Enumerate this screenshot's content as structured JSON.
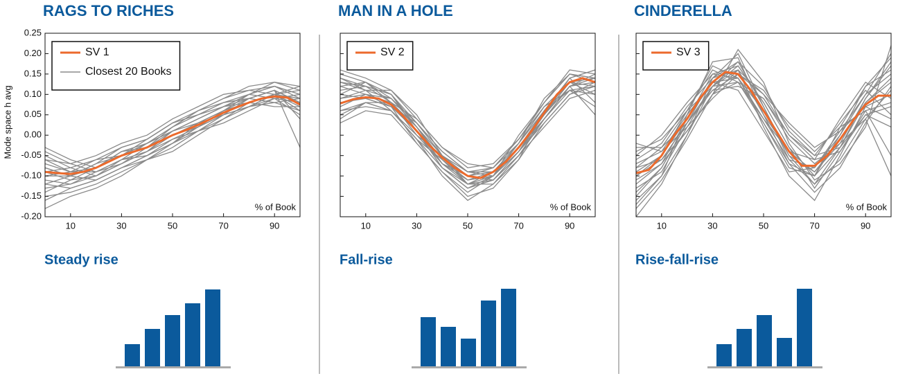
{
  "chart_data": [
    {
      "type": "line",
      "title": "RAGS TO RICHES",
      "xlabel": "% of Book",
      "ylabel": "Mode space h avg",
      "xlim": [
        0,
        100
      ],
      "xticks": [
        10,
        30,
        50,
        70,
        90
      ],
      "ylim": [
        -0.2,
        0.25
      ],
      "yticks": [
        {
          "value": -0.2,
          "label": "-0.20"
        },
        -0.15,
        {
          "value": -0.1,
          "label": "-0.10"
        },
        -0.05,
        {
          "value": 0,
          "label": "0.00"
        },
        0.05,
        {
          "value": 0.1,
          "label": "0.10"
        },
        0.15,
        {
          "value": 0.2,
          "label": "0.20"
        },
        0.25
      ],
      "ytick_labels": true,
      "legend": "upper left",
      "x": [
        0,
        5,
        10,
        15,
        20,
        25,
        30,
        35,
        40,
        45,
        50,
        55,
        60,
        65,
        70,
        75,
        80,
        85,
        90,
        95,
        100
      ],
      "series": [
        {
          "name": "SV 1",
          "color": "#ec6a2c",
          "values": [
            -0.09,
            -0.093,
            -0.095,
            -0.09,
            -0.08,
            -0.065,
            -0.05,
            -0.04,
            -0.03,
            -0.015,
            0,
            0.012,
            0.025,
            0.04,
            0.055,
            0.068,
            0.08,
            0.09,
            0.095,
            0.092,
            0.075
          ]
        }
      ],
      "books": {
        "name": "Closest 20 Books",
        "color": "#8a8a8a",
        "x": [
          0,
          10,
          20,
          30,
          40,
          50,
          60,
          70,
          80,
          90,
          100
        ],
        "lines": [
          [
            -0.05,
            -0.08,
            -0.1,
            -0.06,
            -0.04,
            0.01,
            0.04,
            0.07,
            0.09,
            0.11,
            0.08
          ],
          [
            -0.12,
            -0.13,
            -0.11,
            -0.08,
            -0.05,
            -0.02,
            0.02,
            0.06,
            0.1,
            0.12,
            0.1
          ],
          [
            -0.08,
            -0.1,
            -0.07,
            -0.03,
            -0.01,
            0.03,
            0.05,
            0.08,
            0.1,
            0.09,
            0.05
          ],
          [
            -0.15,
            -0.14,
            -0.12,
            -0.09,
            -0.06,
            -0.03,
            0.01,
            0.04,
            0.07,
            0.08,
            0.06
          ],
          [
            -0.1,
            -0.09,
            -0.06,
            -0.05,
            -0.02,
            0.02,
            0.06,
            0.09,
            0.12,
            0.13,
            0.11
          ],
          [
            -0.03,
            -0.06,
            -0.08,
            -0.05,
            -0.03,
            0,
            0.03,
            0.05,
            0.07,
            0.1,
            0.12
          ],
          [
            -0.18,
            -0.15,
            -0.13,
            -0.1,
            -0.06,
            -0.04,
            0,
            0.04,
            0.08,
            0.1,
            0.09
          ],
          [
            -0.09,
            -0.11,
            -0.1,
            -0.07,
            -0.04,
            -0.01,
            0.01,
            0.05,
            0.09,
            0.11,
            0.04
          ],
          [
            -0.06,
            -0.07,
            -0.05,
            -0.02,
            0,
            0.04,
            0.07,
            0.1,
            0.11,
            0.12,
            0.1
          ],
          [
            -0.11,
            -0.12,
            -0.09,
            -0.06,
            -0.05,
            -0.02,
            0.03,
            0.06,
            0.08,
            0.07,
            0.07
          ],
          [
            -0.07,
            -0.09,
            -0.08,
            -0.04,
            -0.02,
            0.01,
            0.04,
            0.07,
            0.1,
            0.13,
            0.12
          ],
          [
            -0.13,
            -0.12,
            -0.1,
            -0.07,
            -0.04,
            0,
            0.02,
            0.05,
            0.07,
            0.09,
            0.08
          ],
          [
            -0.04,
            -0.07,
            -0.09,
            -0.07,
            -0.03,
            0.02,
            0.05,
            0.08,
            0.09,
            0.08,
            0.09
          ],
          [
            -0.1,
            -0.1,
            -0.08,
            -0.05,
            -0.01,
            0.03,
            0.06,
            0.09,
            0.11,
            0.1,
            0.06
          ],
          [
            -0.08,
            -0.1,
            -0.11,
            -0.08,
            -0.06,
            -0.02,
            0.01,
            0.03,
            0.06,
            0.09,
            0.1
          ],
          [
            -0.14,
            -0.11,
            -0.08,
            -0.04,
            -0.03,
            0.01,
            0.03,
            0.06,
            0.09,
            0.11,
            0.08
          ],
          [
            -0.06,
            -0.09,
            -0.09,
            -0.06,
            -0.02,
            0.02,
            0.06,
            0.08,
            0.09,
            0.11,
            -0.03
          ],
          [
            -0.12,
            -0.1,
            -0.07,
            -0.05,
            -0.02,
            0.01,
            0.04,
            0.07,
            0.1,
            0.12,
            0.09
          ],
          [
            -0.09,
            -0.08,
            -0.06,
            -0.03,
            -0.01,
            0.03,
            0.05,
            0.07,
            0.08,
            0.1,
            0.11
          ],
          [
            -0.16,
            -0.13,
            -0.11,
            -0.08,
            -0.05,
            -0.01,
            0.02,
            0.05,
            0.07,
            0.1,
            0.07
          ]
        ]
      }
    },
    {
      "type": "line",
      "title": "MAN IN A HOLE",
      "xlabel": "% of Book",
      "xlim": [
        0,
        100
      ],
      "xticks": [
        10,
        30,
        50,
        70,
        90
      ],
      "ylim": [
        -0.2,
        0.25
      ],
      "yticks": [
        -0.2,
        -0.15,
        -0.1,
        -0.05,
        0,
        0.05,
        0.1,
        0.15,
        0.2,
        0.25
      ],
      "ytick_labels": false,
      "legend": "upper left",
      "x": [
        0,
        5,
        10,
        15,
        20,
        25,
        30,
        35,
        40,
        45,
        50,
        55,
        60,
        65,
        70,
        75,
        80,
        85,
        90,
        95,
        100
      ],
      "series": [
        {
          "name": "SV 2",
          "color": "#ec6a2c",
          "values": [
            0.078,
            0.088,
            0.093,
            0.09,
            0.075,
            0.045,
            0.01,
            -0.025,
            -0.055,
            -0.08,
            -0.1,
            -0.105,
            -0.09,
            -0.065,
            -0.03,
            0.01,
            0.055,
            0.1,
            0.13,
            0.14,
            0.13
          ]
        }
      ],
      "books": {
        "color": "#8a8a8a",
        "x": [
          0,
          10,
          20,
          30,
          40,
          50,
          60,
          70,
          80,
          90,
          100
        ],
        "lines": [
          [
            0.14,
            0.12,
            0.1,
            0.03,
            -0.04,
            -0.09,
            -0.08,
            -0.01,
            0.08,
            0.15,
            0.14
          ],
          [
            0.05,
            0.08,
            0.06,
            -0.01,
            -0.08,
            -0.13,
            -0.11,
            -0.05,
            0.04,
            0.12,
            0.15
          ],
          [
            0.12,
            0.13,
            0.09,
            0.02,
            -0.06,
            -0.11,
            -0.1,
            -0.04,
            0.06,
            0.14,
            0.16
          ],
          [
            0.09,
            0.1,
            0.08,
            0.04,
            -0.03,
            -0.08,
            -0.07,
            -0.01,
            0.07,
            0.11,
            0.1
          ],
          [
            0.16,
            0.14,
            0.11,
            0.05,
            -0.05,
            -0.12,
            -0.12,
            -0.06,
            0.03,
            0.1,
            0.13
          ],
          [
            0.03,
            0.06,
            0.05,
            -0.02,
            -0.09,
            -0.14,
            -0.1,
            -0.02,
            0.09,
            0.15,
            0.14
          ],
          [
            0.1,
            0.09,
            0.07,
            0.01,
            -0.07,
            -0.1,
            -0.09,
            -0.03,
            0.05,
            0.13,
            0.12
          ],
          [
            0.13,
            0.11,
            0.06,
            -0.01,
            -0.1,
            -0.16,
            -0.12,
            -0.05,
            0.02,
            0.09,
            0.11
          ],
          [
            0.07,
            0.1,
            0.09,
            0.03,
            -0.04,
            -0.09,
            -0.09,
            -0.02,
            0.06,
            0.14,
            0.08
          ],
          [
            0.11,
            0.12,
            0.1,
            0.02,
            -0.06,
            -0.12,
            -0.11,
            -0.04,
            0.05,
            0.12,
            0.13
          ],
          [
            0.06,
            0.07,
            0.06,
            0,
            -0.05,
            -0.1,
            -0.08,
            -0.01,
            0.08,
            0.16,
            0.15
          ],
          [
            0.15,
            0.13,
            0.08,
            0.01,
            -0.08,
            -0.13,
            -0.1,
            -0.03,
            0.04,
            0.11,
            0.07
          ],
          [
            0.04,
            0.08,
            0.08,
            0.02,
            -0.07,
            -0.11,
            -0.1,
            -0.04,
            0.03,
            0.1,
            0.12
          ],
          [
            0.12,
            0.1,
            0.07,
            -0.02,
            -0.09,
            -0.15,
            -0.13,
            -0.06,
            0.06,
            0.13,
            0.14
          ],
          [
            0.09,
            0.11,
            0.11,
            0.04,
            -0.03,
            -0.07,
            -0.08,
            -0.02,
            0.07,
            0.13,
            0.1
          ],
          [
            0.13,
            0.12,
            0.08,
            0,
            -0.07,
            -0.12,
            -0.09,
            -0.03,
            0.05,
            0.14,
            0.16
          ],
          [
            0.08,
            0.09,
            0.07,
            0.03,
            -0.05,
            -0.1,
            -0.11,
            -0.05,
            0.04,
            0.12,
            0.05
          ],
          [
            0.1,
            0.13,
            0.1,
            0.01,
            -0.08,
            -0.12,
            -0.1,
            0,
            0.08,
            0.15,
            0.13
          ],
          [
            0.06,
            0.08,
            0.06,
            -0.01,
            -0.06,
            -0.11,
            -0.09,
            -0.03,
            0.06,
            0.11,
            0.12
          ],
          [
            0.14,
            0.11,
            0.09,
            0.02,
            -0.05,
            -0.09,
            -0.1,
            -0.04,
            0.04,
            0.12,
            0.14
          ]
        ]
      }
    },
    {
      "type": "line",
      "title": "CINDERELLA",
      "xlabel": "% of Book",
      "xlim": [
        0,
        100
      ],
      "xticks": [
        10,
        30,
        50,
        70,
        90
      ],
      "ylim": [
        -0.2,
        0.25
      ],
      "yticks": [
        -0.2,
        -0.15,
        -0.1,
        -0.05,
        0,
        0.05,
        0.1,
        0.15,
        0.2,
        0.25
      ],
      "ytick_labels": false,
      "legend": "upper left",
      "x": [
        0,
        5,
        10,
        15,
        20,
        25,
        30,
        35,
        40,
        45,
        50,
        55,
        60,
        65,
        70,
        75,
        80,
        85,
        90,
        95,
        100
      ],
      "series": [
        {
          "name": "SV 3",
          "color": "#ec6a2c",
          "values": [
            -0.093,
            -0.085,
            -0.05,
            0,
            0.04,
            0.09,
            0.13,
            0.155,
            0.15,
            0.11,
            0.06,
            0.01,
            -0.04,
            -0.075,
            -0.075,
            -0.05,
            -0.01,
            0.035,
            0.075,
            0.097,
            0.097
          ]
        }
      ],
      "books": {
        "color": "#8a8a8a",
        "x": [
          0,
          10,
          20,
          30,
          40,
          50,
          60,
          70,
          80,
          90,
          100
        ],
        "lines": [
          [
            -0.15,
            -0.08,
            0.03,
            0.12,
            0.17,
            0.08,
            -0.03,
            -0.1,
            -0.03,
            0.08,
            0.14
          ],
          [
            -0.05,
            0,
            0.08,
            0.15,
            0.14,
            0.04,
            -0.06,
            -0.08,
            0.01,
            0.1,
            0.2
          ],
          [
            -0.12,
            -0.07,
            0.01,
            0.1,
            0.16,
            0.1,
            0,
            -0.06,
            -0.04,
            0.05,
            0.02
          ],
          [
            -0.2,
            -0.12,
            0,
            0.14,
            0.2,
            0.07,
            -0.05,
            -0.12,
            -0.06,
            0.04,
            -0.1
          ],
          [
            -0.08,
            -0.03,
            0.06,
            0.16,
            0.13,
            0.03,
            -0.08,
            -0.1,
            0,
            0.12,
            0.16
          ],
          [
            -0.02,
            -0.04,
            0.02,
            0.09,
            0.15,
            0.11,
            0.02,
            -0.04,
            0.02,
            0.06,
            0.08
          ],
          [
            -0.17,
            -0.1,
            0.05,
            0.18,
            0.19,
            0.05,
            -0.07,
            -0.14,
            -0.08,
            0.03,
            0.12
          ],
          [
            -0.1,
            -0.06,
            0.03,
            0.11,
            0.12,
            0.09,
            -0.01,
            -0.07,
            -0.02,
            0.09,
            0.18
          ],
          [
            -0.06,
            -0.02,
            0.07,
            0.14,
            0.16,
            0.02,
            -0.1,
            -0.16,
            -0.05,
            0.07,
            0.1
          ],
          [
            -0.13,
            -0.09,
            0.02,
            0.12,
            0.18,
            0.12,
            0.01,
            -0.05,
            0.03,
            0.11,
            0.05
          ],
          [
            -0.09,
            -0.05,
            0.04,
            0.13,
            0.14,
            0.06,
            -0.05,
            -0.09,
            -0.01,
            0.08,
            0.13
          ],
          [
            -0.18,
            -0.11,
            -0.01,
            0.1,
            0.21,
            0.13,
            -0.02,
            -0.11,
            -0.07,
            0.02,
            0.22
          ],
          [
            -0.04,
            -0.01,
            0.06,
            0.12,
            0.13,
            0.04,
            -0.04,
            -0.06,
            0.04,
            0.13,
            0.09
          ],
          [
            -0.11,
            -0.07,
            0.04,
            0.15,
            0.17,
            0.08,
            -0.03,
            -0.13,
            -0.04,
            0.06,
            -0.05
          ],
          [
            -0.07,
            -0.04,
            0.05,
            0.13,
            0.11,
            0.01,
            -0.09,
            -0.08,
            0,
            0.1,
            0.15
          ],
          [
            -0.14,
            -0.08,
            0.03,
            0.11,
            0.15,
            0.1,
            0.03,
            -0.03,
            0.01,
            0.07,
            0.04
          ],
          [
            -0.03,
            -0.03,
            0.03,
            0.14,
            0.18,
            0.07,
            -0.06,
            -0.12,
            -0.03,
            0.09,
            0.17
          ],
          [
            -0.16,
            -0.1,
            0,
            0.12,
            0.16,
            0.05,
            -0.04,
            -0.09,
            -0.02,
            0.04,
            0.11
          ],
          [
            -0.1,
            -0.05,
            0.06,
            0.17,
            0.14,
            0.03,
            -0.07,
            -0.1,
            0.02,
            0.12,
            0.19
          ],
          [
            -0.08,
            -0.06,
            0.01,
            0.1,
            0.13,
            0.09,
            0,
            -0.05,
            -0.03,
            0.05,
            0.07
          ]
        ]
      }
    },
    {
      "type": "bar",
      "title": "Steady rise",
      "values": [
        32,
        54,
        74,
        91,
        111
      ],
      "color": "#0b5a9c",
      "ylim": [
        0,
        115
      ]
    },
    {
      "type": "bar",
      "title": "Fall-rise",
      "values": [
        71,
        57,
        40,
        95,
        112
      ],
      "color": "#0b5a9c",
      "ylim": [
        0,
        115
      ]
    },
    {
      "type": "bar",
      "title": "Rise-fall-rise",
      "values": [
        32,
        54,
        74,
        41,
        112
      ],
      "color": "#0b5a9c",
      "ylim": [
        0,
        115
      ]
    }
  ]
}
